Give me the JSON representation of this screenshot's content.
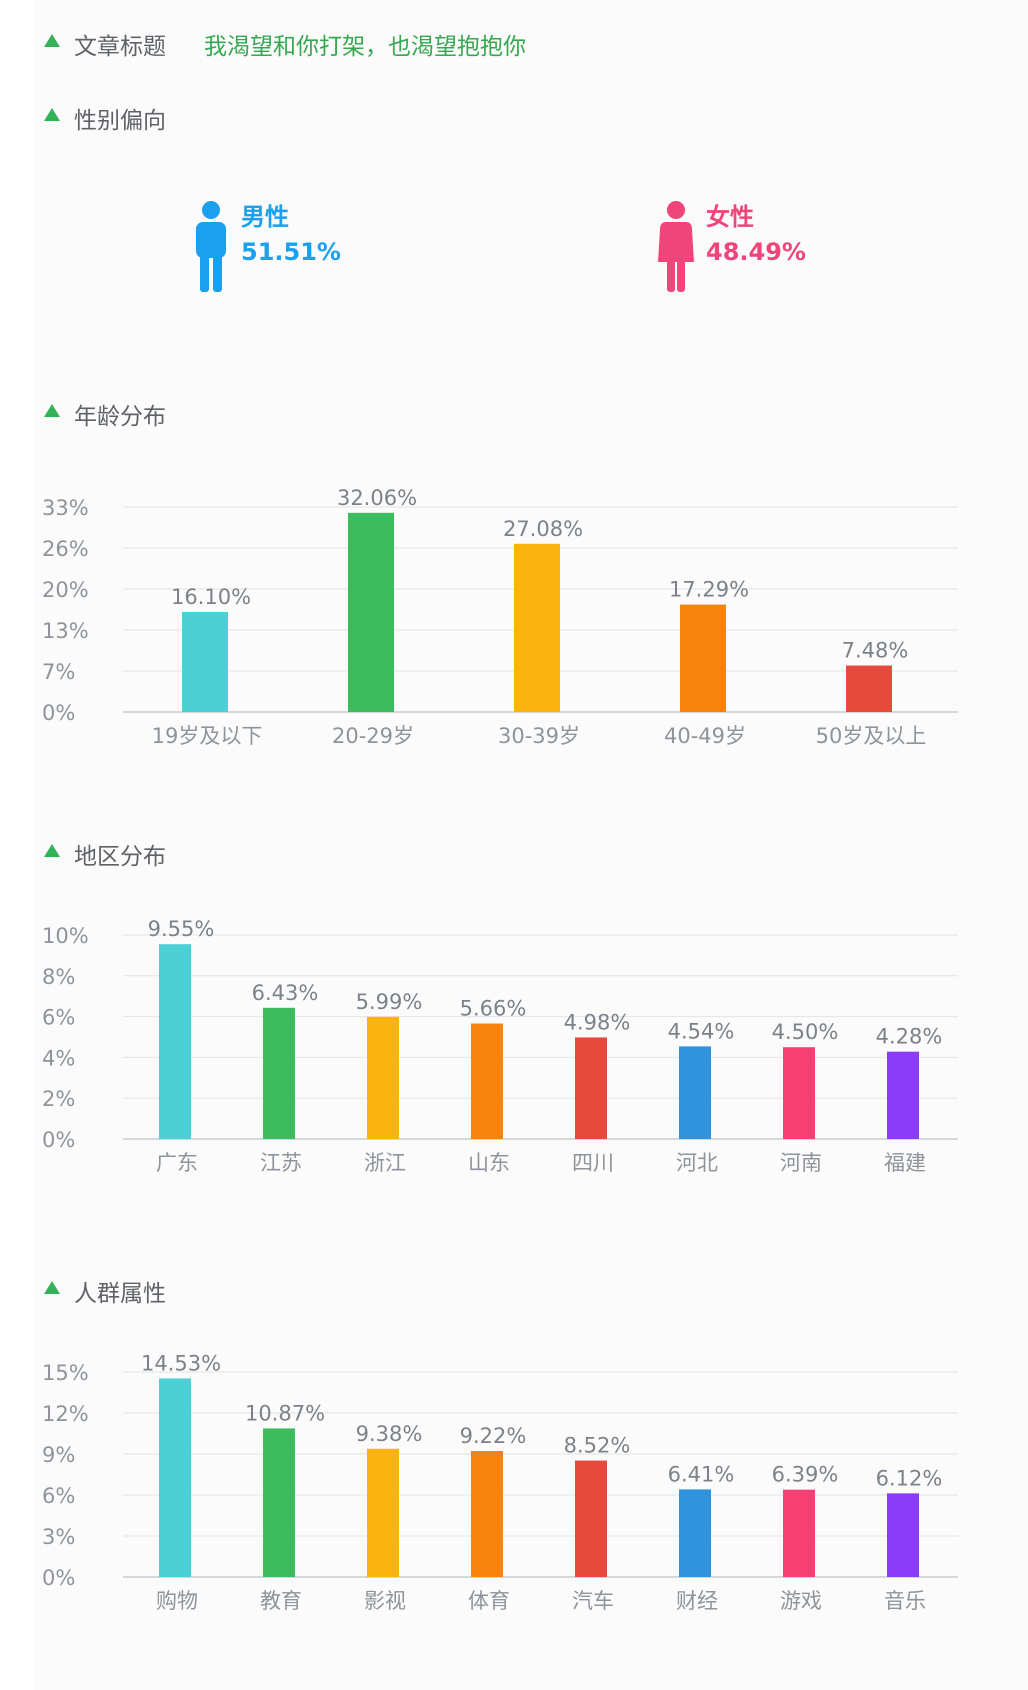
{
  "header": {
    "title_label": "文章标题",
    "title_value": "我渴望和你打架，也渴望抱抱你"
  },
  "sections": {
    "gender": "性别偏向",
    "age": "年龄分布",
    "region": "地区分布",
    "crowd": "人群属性"
  },
  "gender": {
    "male": {
      "label": "男性",
      "value": "51.51%",
      "color": "#1aa0ee"
    },
    "female": {
      "label": "女性",
      "value": "48.49%",
      "color": "#f0457a"
    }
  },
  "chart_data": [
    {
      "type": "bar",
      "title": "年龄分布",
      "categories": [
        "19岁及以下",
        "20-29岁",
        "30-39岁",
        "40-49岁",
        "50岁及以上"
      ],
      "values": [
        16.1,
        32.06,
        27.08,
        17.29,
        7.48
      ],
      "value_labels": [
        "16.10%",
        "32.06%",
        "27.08%",
        "17.29%",
        "7.48%"
      ],
      "colors": [
        "#4dcfd6",
        "#3cbc5c",
        "#fbb40f",
        "#f6830e",
        "#e64a3c"
      ],
      "yticks": [
        "0%",
        "7%",
        "13%",
        "20%",
        "26%",
        "33%"
      ],
      "ylim": [
        0,
        33
      ],
      "grid": true
    },
    {
      "type": "bar",
      "title": "地区分布",
      "categories": [
        "广东",
        "江苏",
        "浙江",
        "山东",
        "四川",
        "河北",
        "河南",
        "福建"
      ],
      "values": [
        9.55,
        6.43,
        5.99,
        5.66,
        4.98,
        4.54,
        4.5,
        4.28
      ],
      "value_labels": [
        "9.55%",
        "6.43%",
        "5.99%",
        "5.66%",
        "4.98%",
        "4.54%",
        "4.50%",
        "4.28%"
      ],
      "colors": [
        "#4dcfd6",
        "#3cbc5c",
        "#fbb40f",
        "#f6830e",
        "#e64a3c",
        "#2f93de",
        "#f73f74",
        "#8a3cf6"
      ],
      "yticks": [
        "0%",
        "2%",
        "4%",
        "6%",
        "8%",
        "10%"
      ],
      "ylim": [
        0,
        10
      ],
      "grid": true
    },
    {
      "type": "bar",
      "title": "人群属性",
      "categories": [
        "购物",
        "教育",
        "影视",
        "体育",
        "汽车",
        "财经",
        "游戏",
        "音乐"
      ],
      "values": [
        14.53,
        10.87,
        9.38,
        9.22,
        8.52,
        6.41,
        6.39,
        6.12
      ],
      "value_labels": [
        "14.53%",
        "10.87%",
        "9.38%",
        "9.22%",
        "8.52%",
        "6.41%",
        "6.39%",
        "6.12%"
      ],
      "colors": [
        "#4dcfd6",
        "#3cbc5c",
        "#fbb40f",
        "#f6830e",
        "#e64a3c",
        "#2f93de",
        "#f73f74",
        "#8a3cf6"
      ],
      "yticks": [
        "0%",
        "3%",
        "6%",
        "9%",
        "12%",
        "15%"
      ],
      "ylim": [
        0,
        15
      ],
      "grid": true
    }
  ]
}
